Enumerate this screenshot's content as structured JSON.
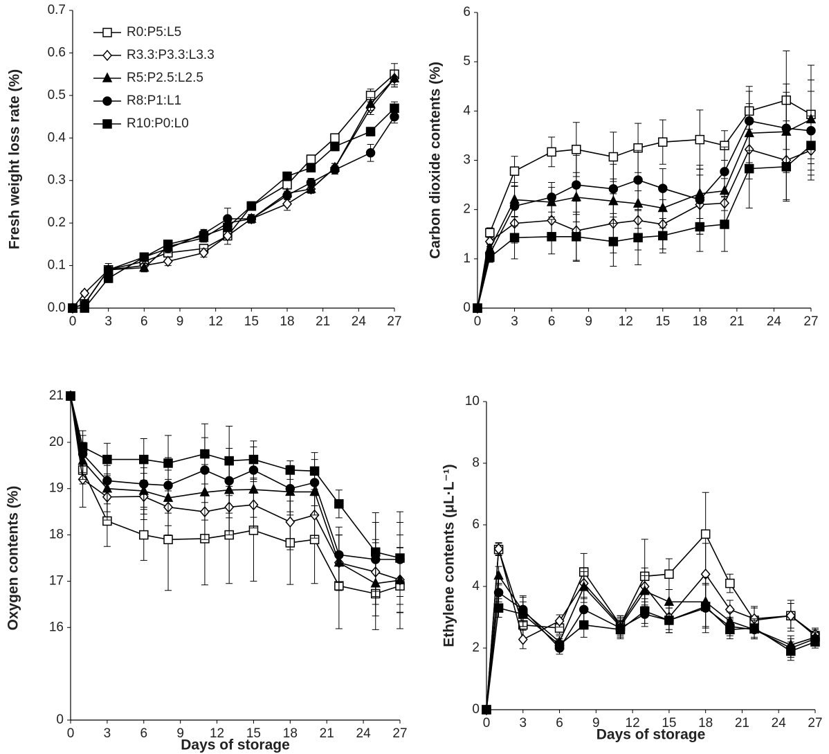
{
  "chart_data": [
    {
      "type": "line",
      "ylabel": "Fresh weight loss rate (%)",
      "legend": "upper left",
      "x": [
        0,
        1,
        3,
        6,
        8,
        11,
        13,
        15,
        18,
        20,
        22,
        25,
        27
      ],
      "xlim": [
        0,
        27
      ],
      "xticks": [
        0,
        3,
        6,
        9,
        12,
        15,
        18,
        21,
        24,
        27
      ],
      "ylim": [
        0,
        0.7
      ],
      "yticks": [
        {
          "value": 0,
          "label": "0.0"
        },
        0.1,
        0.2,
        0.3,
        0.4,
        0.5,
        0.6,
        0.7
      ],
      "series": [
        {
          "name": "R0:P5:L5",
          "color": "#000000",
          "marker": "square-open",
          "values": [
            0,
            0.01,
            0.09,
            0.11,
            0.13,
            0.14,
            0.17,
            0.24,
            0.29,
            0.35,
            0.4,
            0.5,
            0.55
          ],
          "errors": [
            0,
            0.005,
            0.015,
            0.01,
            0.01,
            0.01,
            0.02,
            0.01,
            0.01,
            0.01,
            0.01,
            0.015,
            0.025
          ]
        },
        {
          "name": "R3.3:P3.3:L3.3",
          "color": "#000000",
          "marker": "diamond-open",
          "values": [
            0,
            0.035,
            0.09,
            0.1,
            0.11,
            0.13,
            0.17,
            0.21,
            0.245,
            0.28,
            0.33,
            0.47,
            0.54
          ],
          "errors": [
            0,
            0.005,
            0.01,
            0.01,
            0.01,
            0.01,
            0.01,
            0.01,
            0.015,
            0.01,
            0.01,
            0.015,
            0.02
          ]
        },
        {
          "name": "R5:P2.5:L2.5",
          "color": "#000000",
          "marker": "triangle",
          "values": [
            0,
            0.01,
            0.09,
            0.095,
            0.145,
            0.165,
            0.2,
            0.21,
            0.27,
            0.28,
            0.33,
            0.48,
            0.54
          ],
          "errors": [
            0,
            0.005,
            0.01,
            0.01,
            0.01,
            0.01,
            0.01,
            0.01,
            0.01,
            0.01,
            0.01,
            0.015,
            0.02
          ]
        },
        {
          "name": "R8:P1:L1",
          "color": "#000000",
          "marker": "circle",
          "values": [
            0,
            0.01,
            0.09,
            0.12,
            0.14,
            0.175,
            0.21,
            0.21,
            0.265,
            0.295,
            0.325,
            0.365,
            0.45
          ],
          "errors": [
            0,
            0.005,
            0.01,
            0.01,
            0.01,
            0.01,
            0.025,
            0.01,
            0.01,
            0.01,
            0.01,
            0.02,
            0.015
          ]
        },
        {
          "name": "R10:P0:L0",
          "color": "#000000",
          "marker": "square",
          "values": [
            0,
            0,
            0.07,
            0.12,
            0.15,
            0.17,
            0.19,
            0.24,
            0.31,
            0.33,
            0.38,
            0.415,
            0.47
          ],
          "errors": [
            0,
            0.005,
            0.01,
            0.01,
            0.01,
            0.01,
            0.01,
            0.01,
            0.01,
            0.01,
            0.01,
            0.01,
            0.015
          ]
        }
      ]
    },
    {
      "type": "line",
      "ylabel": "Carbon dioxide contents (%)",
      "x": [
        0,
        1,
        3,
        6,
        8,
        11,
        13,
        15,
        18,
        20,
        22,
        25,
        27
      ],
      "xlim": [
        0,
        27
      ],
      "xticks": [
        0,
        3,
        6,
        9,
        12,
        15,
        18,
        21,
        24,
        27
      ],
      "ylim": [
        0,
        6
      ],
      "yticks": [
        0,
        1,
        2,
        3,
        4,
        5,
        6
      ],
      "series": [
        {
          "color": "#000000",
          "marker": "square-open",
          "values": [
            0,
            1.53,
            2.78,
            3.17,
            3.22,
            3.07,
            3.25,
            3.37,
            3.42,
            3.3,
            4.0,
            4.22,
            3.93
          ],
          "errors": [
            0,
            0.1,
            0.3,
            0.3,
            0.55,
            0.5,
            0.5,
            0.45,
            0.6,
            0.3,
            0.5,
            1.0,
            1.0
          ]
        },
        {
          "color": "#000000",
          "marker": "diamond-open",
          "values": [
            0,
            1.35,
            1.72,
            1.78,
            1.57,
            1.72,
            1.78,
            1.7,
            2.1,
            2.13,
            3.22,
            3.0,
            3.2
          ],
          "errors": [
            0,
            0.1,
            0.4,
            0.4,
            0.6,
            0.6,
            0.6,
            0.5,
            0.6,
            0.5,
            0.6,
            0.8,
            0.6
          ]
        },
        {
          "color": "#000000",
          "marker": "triangle",
          "values": [
            0,
            1.2,
            2.2,
            2.15,
            2.25,
            2.17,
            2.12,
            2.03,
            2.32,
            2.38,
            3.55,
            3.58,
            3.83
          ],
          "errors": [
            0,
            0.1,
            0.35,
            0.3,
            0.5,
            0.45,
            0.5,
            0.4,
            0.5,
            0.4,
            0.6,
            0.8,
            0.8
          ]
        },
        {
          "color": "#000000",
          "marker": "circle",
          "values": [
            0,
            1.1,
            2.07,
            2.25,
            2.5,
            2.42,
            2.6,
            2.43,
            2.2,
            2.77,
            3.8,
            3.65,
            3.6
          ],
          "errors": [
            0,
            0.1,
            0.4,
            0.3,
            0.6,
            0.5,
            0.6,
            0.4,
            0.7,
            0.5,
            0.6,
            0.9,
            0.8
          ]
        },
        {
          "color": "#000000",
          "marker": "square",
          "values": [
            0,
            1.03,
            1.43,
            1.45,
            1.45,
            1.35,
            1.43,
            1.47,
            1.65,
            1.7,
            2.83,
            2.87,
            3.3
          ],
          "errors": [
            0,
            0.1,
            0.43,
            0.35,
            0.5,
            0.5,
            0.55,
            0.35,
            0.5,
            0.55,
            0.8,
            0.7,
            0.6
          ]
        }
      ]
    },
    {
      "type": "line",
      "ylabel": "Oxygen contents (%)",
      "xlabel": "Days of storage",
      "x": [
        0,
        1,
        3,
        6,
        8,
        11,
        13,
        15,
        18,
        20,
        22,
        25,
        27
      ],
      "xlim": [
        0,
        27
      ],
      "xticks": [
        0,
        3,
        6,
        9,
        12,
        15,
        18,
        21,
        24,
        27
      ],
      "ylim": [
        0,
        21
      ],
      "ybreak": [
        0,
        16
      ],
      "yticks": [
        0,
        16,
        17,
        18,
        19,
        20,
        21
      ],
      "series": [
        {
          "color": "#000000",
          "marker": "square-open",
          "values": [
            21,
            19.4,
            18.3,
            18.0,
            17.9,
            17.92,
            18.0,
            18.1,
            17.83,
            17.9,
            16.9,
            16.73,
            16.9
          ],
          "errors": [
            0,
            0.3,
            0.55,
            0.55,
            1.1,
            1.0,
            1.05,
            1.1,
            0.9,
            0.95,
            1.1,
            1.1,
            1.1
          ]
        },
        {
          "color": "#000000",
          "marker": "diamond-open",
          "values": [
            21,
            19.2,
            18.82,
            18.83,
            18.6,
            18.5,
            18.6,
            18.65,
            18.28,
            18.43,
            17.4,
            17.2,
            17.03
          ],
          "errors": [
            0,
            0.6,
            0.5,
            0.5,
            0.6,
            0.6,
            0.6,
            0.5,
            0.6,
            0.5,
            0.6,
            0.7,
            0.7
          ]
        },
        {
          "color": "#000000",
          "marker": "triangle",
          "values": [
            21,
            19.6,
            19.0,
            18.95,
            18.8,
            18.92,
            18.97,
            18.98,
            18.93,
            18.93,
            17.4,
            16.95,
            17.02
          ],
          "errors": [
            0,
            0.4,
            0.5,
            0.5,
            0.6,
            0.6,
            0.6,
            0.6,
            0.5,
            0.5,
            0.6,
            0.7,
            0.7
          ]
        },
        {
          "color": "#000000",
          "marker": "circle",
          "values": [
            21,
            19.75,
            19.17,
            19.1,
            19.07,
            19.4,
            19.17,
            19.4,
            19.0,
            19.13,
            17.57,
            17.47,
            17.47
          ],
          "errors": [
            0,
            0.4,
            0.5,
            0.5,
            0.6,
            0.7,
            0.7,
            0.5,
            0.5,
            0.5,
            0.6,
            0.8,
            0.8
          ]
        },
        {
          "color": "#000000",
          "marker": "square",
          "values": [
            21,
            19.9,
            19.63,
            19.63,
            19.55,
            19.75,
            19.6,
            19.63,
            19.4,
            19.38,
            18.67,
            17.63,
            17.5
          ],
          "errors": [
            0,
            0.35,
            0.35,
            0.45,
            0.6,
            0.65,
            0.75,
            0.4,
            0.2,
            0.4,
            0.3,
            0.85,
            1.0
          ]
        }
      ]
    },
    {
      "type": "line",
      "ylabel": "Ethylene contents (μL·L⁻¹)",
      "xlabel": "Days of storage",
      "x": [
        0,
        1,
        3,
        6,
        8,
        11,
        13,
        15,
        18,
        20,
        22,
        25,
        27
      ],
      "xlim": [
        0,
        27
      ],
      "xticks": [
        0,
        3,
        6,
        9,
        12,
        15,
        18,
        21,
        24,
        27
      ],
      "ylim": [
        0,
        10
      ],
      "yticks": [
        0,
        2,
        4,
        6,
        8,
        10
      ],
      "series": [
        {
          "color": "#000000",
          "marker": "square-open",
          "values": [
            0,
            5.2,
            2.75,
            2.65,
            4.47,
            2.75,
            4.33,
            4.4,
            5.7,
            4.1,
            2.9,
            3.05,
            2.4
          ],
          "errors": [
            0,
            0.2,
            0.5,
            0.2,
            0.6,
            0.3,
            1.2,
            0.5,
            1.35,
            0.3,
            0.4,
            0.5,
            0.2
          ]
        },
        {
          "color": "#000000",
          "marker": "diamond-open",
          "values": [
            0,
            5.22,
            2.28,
            2.88,
            4.1,
            2.75,
            4.0,
            3.0,
            4.4,
            3.25,
            2.95,
            3.05,
            2.45
          ],
          "errors": [
            0,
            0.2,
            0.3,
            0.2,
            0.5,
            0.3,
            0.6,
            0.4,
            1.0,
            0.3,
            0.4,
            0.4,
            0.2
          ]
        },
        {
          "color": "#000000",
          "marker": "triangle",
          "values": [
            0,
            4.35,
            3.2,
            2.2,
            3.98,
            2.7,
            3.85,
            3.5,
            3.5,
            2.87,
            2.6,
            2.1,
            2.35
          ],
          "errors": [
            0,
            0.3,
            0.5,
            0.2,
            0.5,
            0.3,
            0.5,
            0.4,
            0.8,
            0.3,
            0.3,
            0.3,
            0.2
          ]
        },
        {
          "color": "#000000",
          "marker": "circle",
          "values": [
            0,
            3.8,
            3.25,
            2.0,
            3.25,
            2.65,
            3.1,
            2.9,
            3.3,
            2.7,
            2.6,
            2.0,
            2.3
          ],
          "errors": [
            0,
            0.3,
            0.4,
            0.2,
            0.4,
            0.3,
            0.4,
            0.4,
            0.8,
            0.3,
            0.3,
            0.3,
            0.2
          ]
        },
        {
          "color": "#000000",
          "marker": "square",
          "values": [
            0,
            3.3,
            3.1,
            2.1,
            2.75,
            2.6,
            3.2,
            2.9,
            3.35,
            2.6,
            2.65,
            1.9,
            2.2
          ],
          "errors": [
            0,
            0.3,
            0.4,
            0.2,
            0.4,
            0.3,
            0.4,
            0.4,
            0.7,
            0.3,
            0.3,
            0.3,
            0.2
          ]
        }
      ]
    }
  ]
}
